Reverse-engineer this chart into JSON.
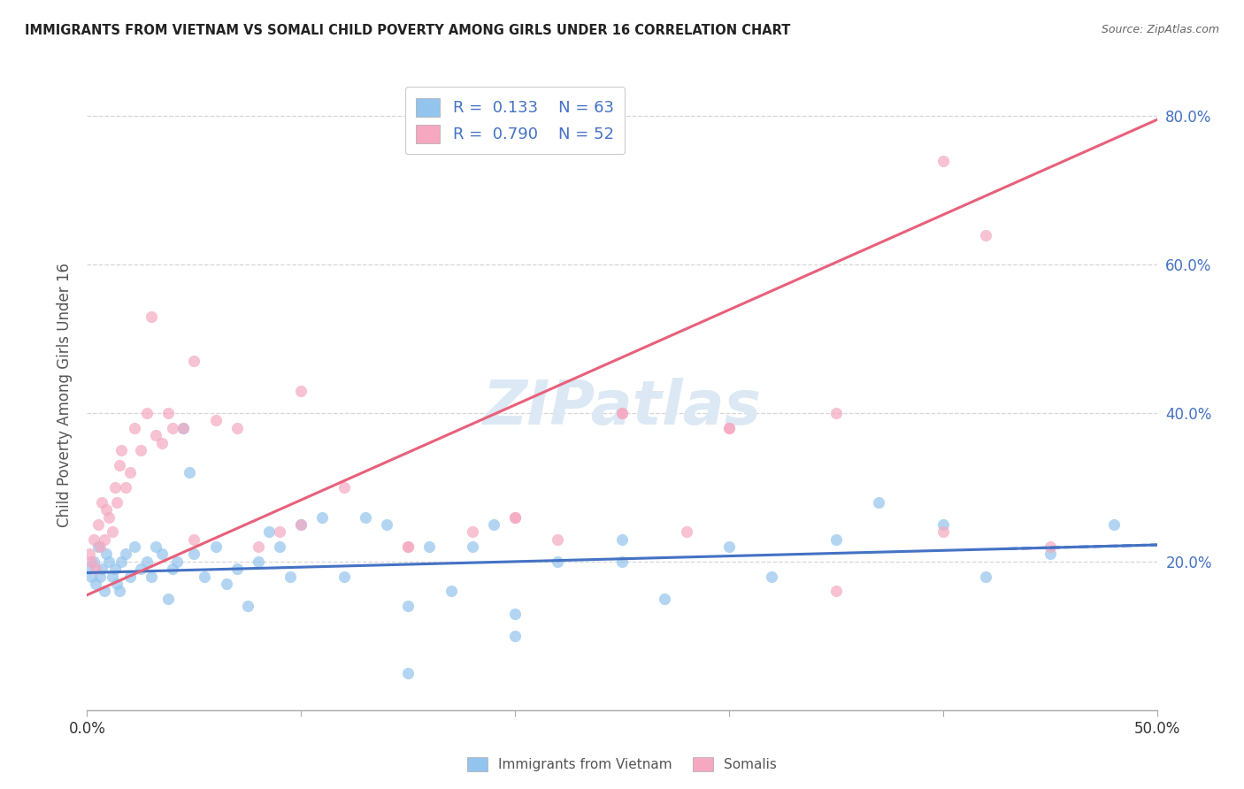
{
  "title": "IMMIGRANTS FROM VIETNAM VS SOMALI CHILD POVERTY AMONG GIRLS UNDER 16 CORRELATION CHART",
  "source": "Source: ZipAtlas.com",
  "ylabel": "Child Poverty Among Girls Under 16",
  "xlim": [
    0.0,
    0.5
  ],
  "ylim": [
    0.0,
    0.85
  ],
  "xtick_positions": [
    0.0,
    0.1,
    0.2,
    0.3,
    0.4,
    0.5
  ],
  "xtick_labels": [
    "0.0%",
    "",
    "",
    "",
    "",
    "50.0%"
  ],
  "ytick_positions": [
    0.0,
    0.2,
    0.4,
    0.6,
    0.8
  ],
  "ytick_labels": [
    "",
    "20.0%",
    "40.0%",
    "60.0%",
    "80.0%"
  ],
  "legend_r1": "R =  0.133",
  "legend_n1": "N = 63",
  "legend_r2": "R =  0.790",
  "legend_n2": "N = 52",
  "color_vietnam": "#93C4ED",
  "color_somali": "#F5A8C0",
  "line_color_vietnam": "#4472C4",
  "line_color_somali": "#E8607A",
  "watermark": "ZIPatlas",
  "watermark_color": "#DCE9F5",
  "background_color": "#FFFFFF",
  "grid_color": "#CCCCCC",
  "viet_intercept": 0.185,
  "viet_slope": 0.075,
  "som_intercept": 0.155,
  "som_slope": 1.28,
  "vietnam_x": [
    0.001,
    0.002,
    0.003,
    0.004,
    0.005,
    0.006,
    0.007,
    0.008,
    0.009,
    0.01,
    0.012,
    0.013,
    0.014,
    0.015,
    0.016,
    0.018,
    0.02,
    0.022,
    0.025,
    0.028,
    0.03,
    0.032,
    0.035,
    0.038,
    0.04,
    0.042,
    0.045,
    0.048,
    0.05,
    0.055,
    0.06,
    0.065,
    0.07,
    0.075,
    0.08,
    0.085,
    0.09,
    0.095,
    0.1,
    0.11,
    0.12,
    0.13,
    0.14,
    0.15,
    0.16,
    0.17,
    0.18,
    0.19,
    0.2,
    0.22,
    0.25,
    0.27,
    0.3,
    0.32,
    0.35,
    0.37,
    0.4,
    0.42,
    0.45,
    0.48,
    0.15,
    0.2,
    0.25
  ],
  "vietnam_y": [
    0.19,
    0.18,
    0.2,
    0.17,
    0.22,
    0.18,
    0.19,
    0.16,
    0.21,
    0.2,
    0.18,
    0.19,
    0.17,
    0.16,
    0.2,
    0.21,
    0.18,
    0.22,
    0.19,
    0.2,
    0.18,
    0.22,
    0.21,
    0.15,
    0.19,
    0.2,
    0.38,
    0.32,
    0.21,
    0.18,
    0.22,
    0.17,
    0.19,
    0.14,
    0.2,
    0.24,
    0.22,
    0.18,
    0.25,
    0.26,
    0.18,
    0.26,
    0.25,
    0.14,
    0.22,
    0.16,
    0.22,
    0.25,
    0.1,
    0.2,
    0.2,
    0.15,
    0.22,
    0.18,
    0.23,
    0.28,
    0.25,
    0.18,
    0.21,
    0.25,
    0.05,
    0.13,
    0.23
  ],
  "somali_x": [
    0.001,
    0.002,
    0.003,
    0.004,
    0.005,
    0.006,
    0.007,
    0.008,
    0.009,
    0.01,
    0.012,
    0.013,
    0.014,
    0.015,
    0.016,
    0.018,
    0.02,
    0.022,
    0.025,
    0.028,
    0.03,
    0.032,
    0.035,
    0.038,
    0.04,
    0.045,
    0.05,
    0.06,
    0.07,
    0.08,
    0.09,
    0.1,
    0.12,
    0.15,
    0.18,
    0.2,
    0.22,
    0.25,
    0.28,
    0.3,
    0.05,
    0.1,
    0.15,
    0.2,
    0.25,
    0.3,
    0.35,
    0.4,
    0.42,
    0.45,
    0.35,
    0.4
  ],
  "somali_y": [
    0.21,
    0.2,
    0.23,
    0.19,
    0.25,
    0.22,
    0.28,
    0.23,
    0.27,
    0.26,
    0.24,
    0.3,
    0.28,
    0.33,
    0.35,
    0.3,
    0.32,
    0.38,
    0.35,
    0.4,
    0.53,
    0.37,
    0.36,
    0.4,
    0.38,
    0.38,
    0.23,
    0.39,
    0.38,
    0.22,
    0.24,
    0.25,
    0.3,
    0.22,
    0.24,
    0.26,
    0.23,
    0.4,
    0.24,
    0.38,
    0.47,
    0.43,
    0.22,
    0.26,
    0.4,
    0.38,
    0.4,
    0.74,
    0.64,
    0.22,
    0.16,
    0.24
  ]
}
